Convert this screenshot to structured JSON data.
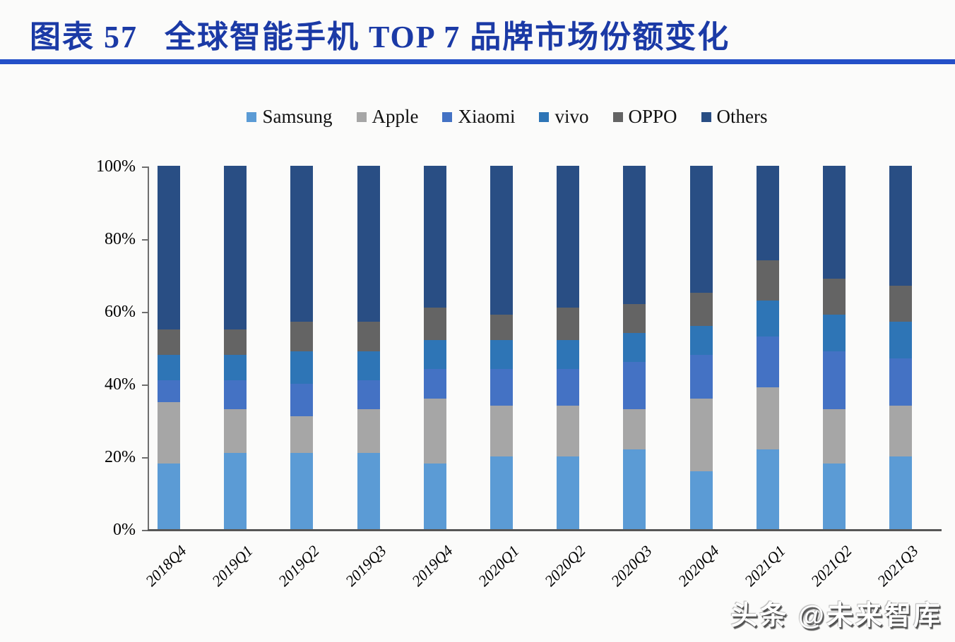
{
  "page": {
    "title_prefix": "图表  57",
    "title_main": "全球智能手机 TOP 7 品牌市场份额变化",
    "title_color": "#1b3aa6",
    "rule_color": "#2450c8",
    "watermark": "头条 @未来智库"
  },
  "chart_data": {
    "type": "bar",
    "stacked": true,
    "unit": "%",
    "title": "全球智能手机 TOP 7 品牌市场份额变化",
    "categories": [
      "2018Q4",
      "2019Q1",
      "2019Q2",
      "2019Q3",
      "2019Q4",
      "2020Q1",
      "2020Q2",
      "2020Q3",
      "2020Q4",
      "2021Q1",
      "2021Q2",
      "2021Q3"
    ],
    "series": [
      {
        "name": "Samsung",
        "color": "#5B9BD5",
        "values": [
          18,
          21,
          21,
          21,
          18,
          20,
          20,
          22,
          16,
          22,
          18,
          20
        ]
      },
      {
        "name": "Apple",
        "color": "#A6A6A6",
        "values": [
          17,
          12,
          10,
          12,
          18,
          14,
          14,
          11,
          20,
          17,
          15,
          14
        ]
      },
      {
        "name": "Xiaomi",
        "color": "#4472C4",
        "values": [
          6,
          8,
          9,
          8,
          8,
          10,
          10,
          13,
          12,
          14,
          16,
          13
        ]
      },
      {
        "name": "vivo",
        "color": "#2E75B6",
        "values": [
          7,
          7,
          9,
          8,
          8,
          8,
          8,
          8,
          8,
          10,
          10,
          10
        ]
      },
      {
        "name": "OPPO",
        "color": "#646464",
        "values": [
          7,
          7,
          8,
          8,
          9,
          7,
          9,
          8,
          9,
          11,
          10,
          10
        ]
      },
      {
        "name": "Others",
        "color": "#294E84",
        "values": [
          45,
          45,
          43,
          43,
          39,
          41,
          39,
          38,
          35,
          26,
          31,
          33
        ]
      }
    ],
    "y_ticks": [
      "100%",
      "80%",
      "60%",
      "40%",
      "20%",
      "0%"
    ],
    "ylim": [
      0,
      100
    ],
    "xlabel": "",
    "ylabel": "",
    "grid": false,
    "legend_position": "top"
  }
}
